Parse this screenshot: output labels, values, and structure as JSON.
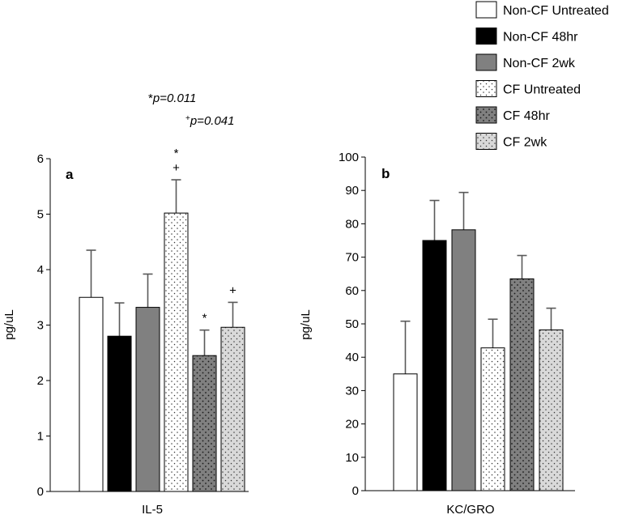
{
  "chart_data": [
    {
      "panel": "a",
      "type": "bar",
      "xlabel": "IL-5",
      "ylabel": "pg/uL",
      "ylim": [
        0,
        6
      ],
      "yticks": [
        0,
        1,
        2,
        3,
        4,
        5,
        6
      ],
      "bars": [
        {
          "series": "Non-CF Untreated",
          "value": 3.5,
          "error": 0.85,
          "marks": []
        },
        {
          "series": "Non-CF 48hr",
          "value": 2.8,
          "error": 0.6,
          "marks": []
        },
        {
          "series": "Non-CF 2wk",
          "value": 3.32,
          "error": 0.6,
          "marks": []
        },
        {
          "series": "CF Untreated",
          "value": 5.02,
          "error": 0.6,
          "marks": [
            "*",
            "+"
          ]
        },
        {
          "series": "CF 48hr",
          "value": 2.45,
          "error": 0.46,
          "marks": [
            "*"
          ]
        },
        {
          "series": "CF 2wk",
          "value": 2.96,
          "error": 0.45,
          "marks": [
            "+"
          ]
        }
      ]
    },
    {
      "panel": "b",
      "type": "bar",
      "xlabel": "KC/GRO",
      "ylabel": "pg/uL",
      "ylim": [
        0,
        100
      ],
      "yticks": [
        0,
        10,
        20,
        30,
        40,
        50,
        60,
        70,
        80,
        90,
        100
      ],
      "bars": [
        {
          "series": "Non-CF Untreated",
          "value": 35,
          "error": 15.8,
          "marks": []
        },
        {
          "series": "Non-CF 48hr",
          "value": 75,
          "error": 12,
          "marks": []
        },
        {
          "series": "Non-CF 2wk",
          "value": 78.2,
          "error": 11.2,
          "marks": []
        },
        {
          "series": "CF Untreated",
          "value": 42.8,
          "error": 8.6,
          "marks": []
        },
        {
          "series": "CF 48hr",
          "value": 63.5,
          "error": 7,
          "marks": []
        },
        {
          "series": "CF 2wk",
          "value": 48.2,
          "error": 6.5,
          "marks": []
        }
      ]
    }
  ],
  "legend": [
    {
      "label": "Non-CF Untreated",
      "fill": "#ffffff",
      "pattern": "none"
    },
    {
      "label": "Non-CF 48hr",
      "fill": "#000000",
      "pattern": "none"
    },
    {
      "label": "Non-CF 2wk",
      "fill": "#808080",
      "pattern": "none"
    },
    {
      "label": "CF Untreated",
      "fill": "#ffffff",
      "pattern": "dots"
    },
    {
      "label": "CF 48hr",
      "fill": "#808080",
      "pattern": "dots"
    },
    {
      "label": "CF 2wk",
      "fill": "#d9d9d9",
      "pattern": "dots"
    }
  ],
  "annotations": {
    "star_symbol": "*",
    "star_p": "p=0.011",
    "plus_symbol": "+",
    "plus_p": "p=0.041"
  },
  "colors": {
    "axis": "#000000",
    "errorbar": "#595959",
    "dot": "#333333"
  }
}
